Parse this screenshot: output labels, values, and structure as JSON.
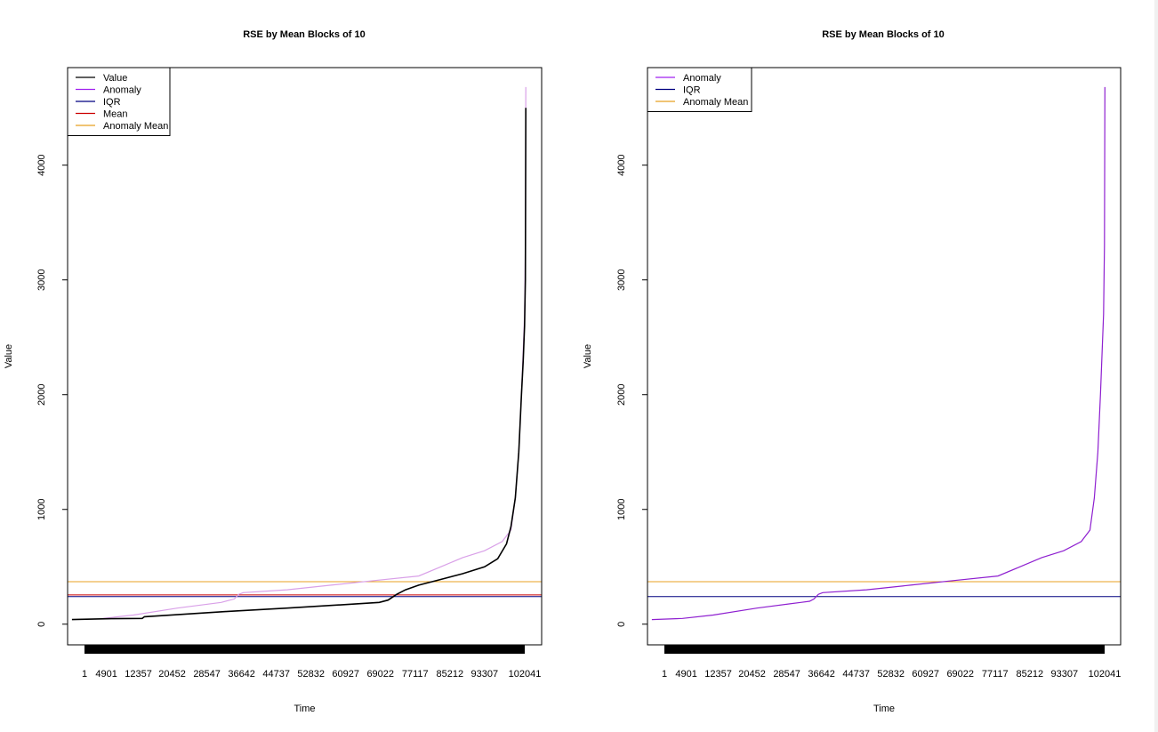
{
  "chart_data": [
    {
      "type": "line",
      "title": "RSE by Mean Blocks of 10",
      "xlabel": "Time",
      "ylabel": "Value",
      "x_tick_labels": [
        "1",
        "4901",
        "12357",
        "20452",
        "28547",
        "36642",
        "44737",
        "52832",
        "60927",
        "69022",
        "77117",
        "85212",
        "93307",
        "102041"
      ],
      "y_ticks": [
        0,
        1000,
        2000,
        3000,
        4000
      ],
      "xlim": [
        0,
        108000
      ],
      "ylim": [
        -180,
        4850
      ],
      "legend_position": "top-left",
      "legend": [
        {
          "label": "Value",
          "color": "#000000"
        },
        {
          "label": "Anomaly",
          "color": "#a020f0"
        },
        {
          "label": "IQR",
          "color": "#000080"
        },
        {
          "label": "Mean",
          "color": "#cc0000"
        },
        {
          "label": "Anomaly Mean",
          "color": "#e8a020"
        }
      ],
      "series": [
        {
          "name": "Value",
          "color": "#000000",
          "x": [
            1000,
            10000,
            17000,
            17500,
            36000,
            50000,
            65000,
            71000,
            73000,
            75000,
            77000,
            80000,
            85000,
            90000,
            95000,
            98000,
            100000,
            101000,
            102000,
            102800,
            103400,
            103800,
            104100,
            104300,
            104400
          ],
          "y": [
            40,
            48,
            50,
            65,
            110,
            140,
            175,
            190,
            210,
            260,
            300,
            340,
            390,
            440,
            500,
            570,
            700,
            850,
            1100,
            1500,
            2000,
            2300,
            2600,
            3000,
            4500
          ]
        },
        {
          "name": "Anomaly",
          "color": "#d9a0e8",
          "x": [
            8000,
            15000,
            25000,
            35000,
            38000,
            39000,
            40000,
            50000,
            60000,
            70000,
            80000,
            85000,
            90000,
            95000,
            99000,
            101000,
            102000,
            102800,
            103400,
            103800,
            104100,
            104300,
            104400
          ],
          "y": [
            50,
            80,
            140,
            190,
            220,
            260,
            275,
            300,
            340,
            380,
            420,
            500,
            580,
            640,
            720,
            820,
            1100,
            1500,
            2000,
            2400,
            2700,
            3300,
            4680
          ]
        }
      ],
      "hlines": [
        {
          "name": "IQR",
          "value": 240,
          "color": "#000080"
        },
        {
          "name": "Mean",
          "value": 255,
          "color": "#cc0000"
        },
        {
          "name": "Anomaly Mean",
          "value": 370,
          "color": "#e8a020"
        }
      ]
    },
    {
      "type": "line",
      "title": "RSE by Mean Blocks of 10",
      "xlabel": "Time",
      "ylabel": "Value",
      "x_tick_labels": [
        "1",
        "4901",
        "12357",
        "20452",
        "28547",
        "36642",
        "44737",
        "52832",
        "60927",
        "69022",
        "77117",
        "85212",
        "93307",
        "102041"
      ],
      "y_ticks": [
        0,
        1000,
        2000,
        3000,
        4000
      ],
      "xlim": [
        0,
        108000
      ],
      "ylim": [
        -180,
        4850
      ],
      "legend_position": "top-left",
      "legend": [
        {
          "label": "Anomaly",
          "color": "#a020f0"
        },
        {
          "label": "IQR",
          "color": "#000080"
        },
        {
          "label": "Anomaly Mean",
          "color": "#e8a020"
        }
      ],
      "series": [
        {
          "name": "Anomaly",
          "color": "#8e1fd0",
          "x": [
            1000,
            8000,
            15000,
            25000,
            35000,
            37000,
            38000,
            39000,
            40000,
            50000,
            60000,
            70000,
            80000,
            85000,
            90000,
            95000,
            99000,
            101000,
            102000,
            102800,
            103400,
            103800,
            104100,
            104300,
            104400
          ],
          "y": [
            40,
            50,
            80,
            140,
            190,
            200,
            220,
            260,
            275,
            300,
            340,
            380,
            420,
            500,
            580,
            640,
            720,
            820,
            1100,
            1500,
            2000,
            2400,
            2700,
            3300,
            4680
          ]
        }
      ],
      "hlines": [
        {
          "name": "IQR",
          "value": 240,
          "color": "#000080"
        },
        {
          "name": "Anomaly Mean",
          "value": 370,
          "color": "#e8a020"
        }
      ]
    }
  ]
}
